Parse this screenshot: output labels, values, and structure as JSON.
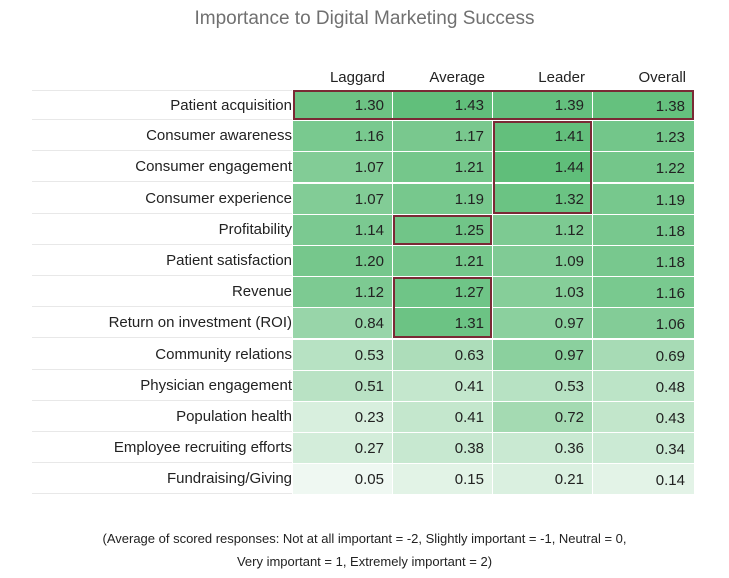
{
  "title": "Importance to Digital Marketing Success",
  "columns": [
    "Laggard",
    "Average",
    "Leader",
    "Overall"
  ],
  "chart_data": {
    "type": "table",
    "title": "Importance to Digital Marketing Success",
    "columns": [
      "Laggard",
      "Average",
      "Leader",
      "Overall"
    ],
    "rows": [
      {
        "label": "Patient acquisition",
        "values": [
          1.3,
          1.43,
          1.39,
          1.38
        ]
      },
      {
        "label": "Consumer awareness",
        "values": [
          1.16,
          1.17,
          1.41,
          1.23
        ]
      },
      {
        "label": "Consumer engagement",
        "values": [
          1.07,
          1.21,
          1.44,
          1.22
        ]
      },
      {
        "label": "Consumer experience",
        "values": [
          1.07,
          1.19,
          1.32,
          1.19
        ]
      },
      {
        "label": "Profitability",
        "values": [
          1.14,
          1.25,
          1.12,
          1.18
        ]
      },
      {
        "label": "Patient satisfaction",
        "values": [
          1.2,
          1.21,
          1.09,
          1.18
        ]
      },
      {
        "label": "Revenue",
        "values": [
          1.12,
          1.27,
          1.03,
          1.16
        ]
      },
      {
        "label": "Return on investment (ROI)",
        "values": [
          0.84,
          1.31,
          0.97,
          1.06
        ]
      },
      {
        "label": "Community relations",
        "values": [
          0.53,
          0.63,
          0.97,
          0.69
        ]
      },
      {
        "label": "Physician engagement",
        "values": [
          0.51,
          0.41,
          0.53,
          0.48
        ]
      },
      {
        "label": "Population health",
        "values": [
          0.23,
          0.41,
          0.72,
          0.43
        ]
      },
      {
        "label": "Employee recruiting efforts",
        "values": [
          0.27,
          0.38,
          0.36,
          0.34
        ]
      },
      {
        "label": "Fundraising/Giving",
        "values": [
          0.05,
          0.15,
          0.21,
          0.14
        ]
      }
    ],
    "highlighted": [
      {
        "rows": [
          "Patient acquisition"
        ],
        "columns": [
          "Laggard",
          "Average",
          "Leader",
          "Overall"
        ]
      },
      {
        "rows": [
          "Consumer awareness",
          "Consumer engagement",
          "Consumer experience"
        ],
        "columns": [
          "Leader"
        ]
      },
      {
        "rows": [
          "Profitability"
        ],
        "columns": [
          "Average"
        ]
      },
      {
        "rows": [
          "Revenue",
          "Return on investment (ROI)"
        ],
        "columns": [
          "Average"
        ]
      }
    ],
    "colors": {
      "low": "#f8fcf9",
      "high": "#5fbe79",
      "highlight_border": "#7a2a35"
    }
  },
  "footnote": {
    "line1": "(Average of scored responses: Not at all important = -2, Slightly important = -1, Neutral = 0,",
    "line2": "Very important = 1, Extremely important = 2)"
  }
}
